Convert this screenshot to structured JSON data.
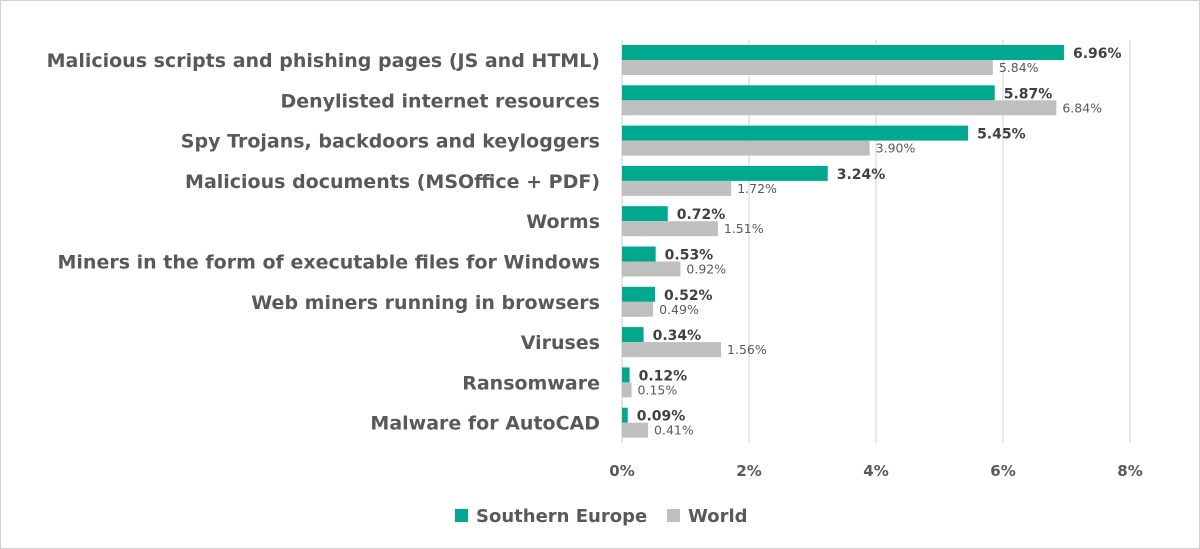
{
  "chart_data": {
    "type": "bar",
    "orientation": "horizontal",
    "categories": [
      "Malicious scripts and phishing pages (JS and HTML)",
      "Denylisted internet resources",
      "Spy Trojans, backdoors and keyloggers",
      "Malicious documents (MSOffice + PDF)",
      "Worms",
      "Miners in the form of executable files for Windows",
      "Web miners running in browsers",
      "Viruses",
      "Ransomware",
      "Malware for AutoCAD"
    ],
    "series": [
      {
        "name": "Southern Europe",
        "color": "#00a88e",
        "values": [
          6.96,
          5.87,
          5.45,
          3.24,
          0.72,
          0.53,
          0.52,
          0.34,
          0.12,
          0.09
        ],
        "labels": [
          "6.96%",
          "5.87%",
          "5.45%",
          "3.24%",
          "0.72%",
          "0.53%",
          "0.52%",
          "0.34%",
          "0.12%",
          "0.09%"
        ]
      },
      {
        "name": "World",
        "color": "#bfbfbf",
        "values": [
          5.84,
          6.84,
          3.9,
          1.72,
          1.51,
          0.92,
          0.49,
          1.56,
          0.15,
          0.41
        ],
        "labels": [
          "5.84%",
          "6.84%",
          "3.90%",
          "1.72%",
          "1.51%",
          "0.92%",
          "0.49%",
          "1.56%",
          "0.15%",
          "0.41%"
        ]
      }
    ],
    "xlim": [
      0,
      8
    ],
    "xticks": [
      0,
      2,
      4,
      6,
      8
    ],
    "xtick_labels": [
      "0%",
      "2%",
      "4%",
      "6%",
      "8%"
    ],
    "grid": "vertical",
    "legend": "bottom-center",
    "title": "",
    "xlabel": "",
    "ylabel": ""
  }
}
